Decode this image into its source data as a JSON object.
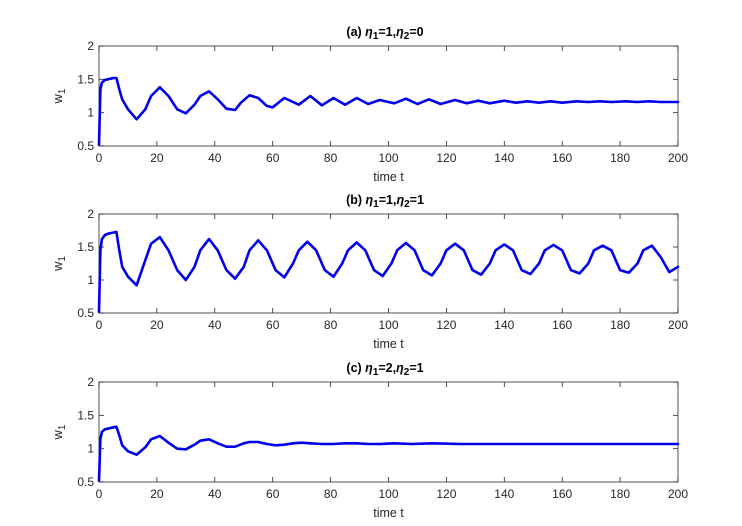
{
  "chart_data": [
    {
      "type": "line",
      "title_parts": [
        "(a) ",
        "η",
        "1",
        "=1,",
        "η",
        "2",
        "=0"
      ],
      "xlabel": "time t",
      "ylabel_parts": [
        "w",
        "1"
      ],
      "xlim": [
        0,
        200
      ],
      "ylim": [
        0.5,
        2
      ],
      "xticks": [
        0,
        20,
        40,
        60,
        80,
        100,
        120,
        140,
        160,
        180,
        200
      ],
      "yticks": [
        0.5,
        1,
        1.5,
        2
      ],
      "grid": false,
      "legend": "none",
      "series": [
        {
          "color": "#0000ee",
          "x": [
            0,
            0.5,
            1,
            2,
            3,
            4,
            5,
            6,
            7,
            8,
            10,
            13,
            16,
            18,
            21,
            24,
            27,
            30,
            33,
            35,
            38,
            41,
            44,
            47,
            49,
            52,
            55,
            58,
            60,
            64,
            69,
            73,
            77,
            81,
            85,
            89,
            93,
            97,
            102,
            106,
            110,
            114,
            118,
            123,
            127,
            131,
            135,
            140,
            144,
            148,
            152,
            156,
            160,
            165,
            169,
            173,
            177,
            182,
            186,
            190,
            194,
            198,
            200
          ],
          "y": [
            0.52,
            1.35,
            1.45,
            1.49,
            1.5,
            1.51,
            1.52,
            1.52,
            1.35,
            1.2,
            1.05,
            0.9,
            1.05,
            1.25,
            1.38,
            1.25,
            1.05,
            0.99,
            1.12,
            1.25,
            1.32,
            1.2,
            1.06,
            1.04,
            1.15,
            1.26,
            1.22,
            1.1,
            1.08,
            1.22,
            1.12,
            1.25,
            1.11,
            1.22,
            1.12,
            1.22,
            1.13,
            1.19,
            1.14,
            1.21,
            1.13,
            1.2,
            1.13,
            1.19,
            1.14,
            1.18,
            1.14,
            1.18,
            1.15,
            1.17,
            1.15,
            1.17,
            1.15,
            1.17,
            1.16,
            1.17,
            1.16,
            1.17,
            1.16,
            1.17,
            1.16,
            1.16,
            1.16
          ]
        }
      ]
    },
    {
      "type": "line",
      "title_parts": [
        "(b) ",
        "η",
        "1",
        "=1,",
        "η",
        "2",
        "=1"
      ],
      "xlabel": "time t",
      "ylabel_parts": [
        "w",
        "1"
      ],
      "xlim": [
        0,
        200
      ],
      "ylim": [
        0.5,
        2
      ],
      "xticks": [
        0,
        20,
        40,
        60,
        80,
        100,
        120,
        140,
        160,
        180,
        200
      ],
      "yticks": [
        0.5,
        1,
        1.5,
        2
      ],
      "grid": false,
      "legend": "none",
      "series": [
        {
          "color": "#0000ee",
          "x": [
            0,
            0.5,
            1,
            2,
            3,
            4,
            5,
            6,
            7,
            8,
            10,
            13,
            16,
            18,
            21,
            24,
            27,
            30,
            33,
            35,
            38,
            41,
            44,
            47,
            50,
            52,
            55,
            58,
            61,
            64,
            67,
            69,
            72,
            75,
            78,
            81,
            84,
            86,
            89,
            92,
            95,
            98,
            101,
            103,
            106,
            109,
            112,
            115,
            118,
            120,
            123,
            126,
            129,
            132,
            135,
            137,
            140,
            143,
            146,
            149,
            152,
            154,
            157,
            160,
            163,
            166,
            169,
            171,
            174,
            177,
            180,
            183,
            186,
            188,
            191,
            194,
            197,
            200
          ],
          "y": [
            0.52,
            1.45,
            1.62,
            1.68,
            1.7,
            1.71,
            1.72,
            1.73,
            1.45,
            1.2,
            1.05,
            0.92,
            1.3,
            1.55,
            1.65,
            1.45,
            1.15,
            1.0,
            1.2,
            1.45,
            1.62,
            1.45,
            1.15,
            1.02,
            1.2,
            1.45,
            1.6,
            1.45,
            1.15,
            1.04,
            1.25,
            1.45,
            1.58,
            1.45,
            1.15,
            1.05,
            1.25,
            1.45,
            1.57,
            1.45,
            1.15,
            1.06,
            1.25,
            1.45,
            1.56,
            1.45,
            1.15,
            1.07,
            1.25,
            1.45,
            1.55,
            1.45,
            1.15,
            1.08,
            1.25,
            1.45,
            1.54,
            1.45,
            1.15,
            1.09,
            1.25,
            1.45,
            1.53,
            1.45,
            1.15,
            1.1,
            1.25,
            1.45,
            1.52,
            1.45,
            1.15,
            1.11,
            1.25,
            1.45,
            1.52,
            1.35,
            1.12,
            1.2
          ]
        }
      ]
    },
    {
      "type": "line",
      "title_parts": [
        "(c) ",
        "η",
        "1",
        "=2,",
        "η",
        "2",
        "=1"
      ],
      "xlabel": "time t",
      "ylabel_parts": [
        "w",
        "1"
      ],
      "xlim": [
        0,
        200
      ],
      "ylim": [
        0.5,
        2
      ],
      "xticks": [
        0,
        20,
        40,
        60,
        80,
        100,
        120,
        140,
        160,
        180,
        200
      ],
      "yticks": [
        0.5,
        1,
        1.5,
        2
      ],
      "grid": false,
      "legend": "none",
      "series": [
        {
          "color": "#0000ee",
          "x": [
            0,
            0.5,
            1,
            2,
            3,
            4,
            5,
            6,
            7,
            8,
            10,
            13,
            16,
            18,
            21,
            24,
            27,
            30,
            33,
            35,
            38,
            41,
            44,
            47,
            50,
            52,
            55,
            58,
            61,
            64,
            67,
            70,
            73,
            77,
            81,
            85,
            89,
            93,
            97,
            102,
            108,
            115,
            125,
            140,
            160,
            180,
            200
          ],
          "y": [
            0.52,
            1.15,
            1.25,
            1.29,
            1.3,
            1.31,
            1.32,
            1.33,
            1.2,
            1.05,
            0.96,
            0.91,
            1.02,
            1.14,
            1.19,
            1.09,
            1.0,
            0.99,
            1.06,
            1.12,
            1.14,
            1.08,
            1.03,
            1.03,
            1.08,
            1.1,
            1.1,
            1.07,
            1.05,
            1.06,
            1.08,
            1.09,
            1.08,
            1.07,
            1.07,
            1.08,
            1.08,
            1.07,
            1.07,
            1.08,
            1.07,
            1.08,
            1.07,
            1.07,
            1.07,
            1.07,
            1.07
          ]
        }
      ]
    }
  ]
}
